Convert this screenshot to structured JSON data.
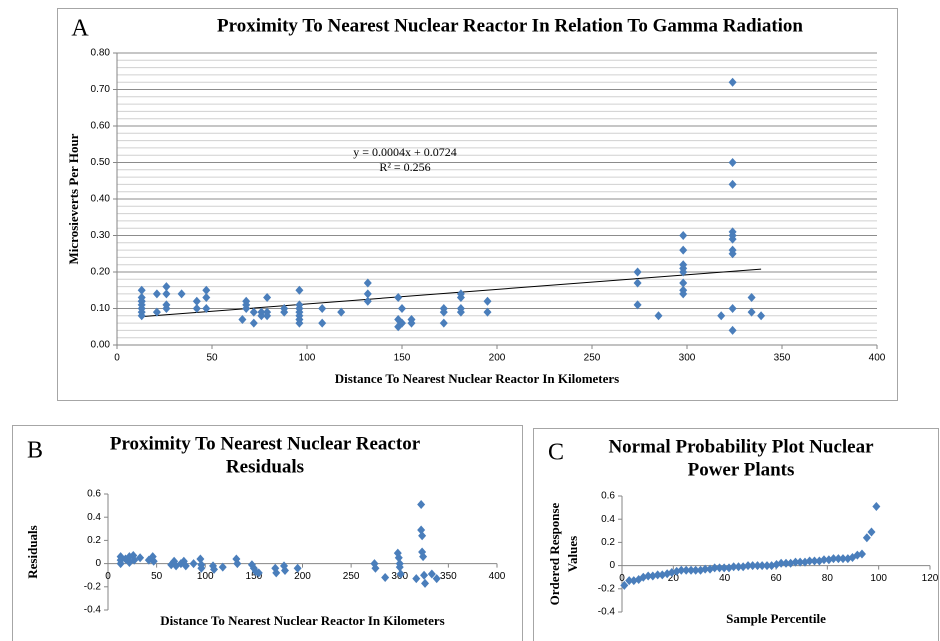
{
  "chart_data": [
    {
      "type": "scatter",
      "panel_label": "A",
      "title": "Proximity To Nearest Nuclear Reactor In Relation To Gamma Radiation",
      "xlabel": "Distance To Nearest Nuclear Reactor In Kilometers",
      "ylabel": [
        "Microsieverts Per Hour"
      ],
      "color": "#4a7ebb",
      "x": [
        13,
        13,
        13,
        13,
        13,
        13,
        13,
        13,
        21,
        21,
        26,
        26,
        26,
        26,
        34,
        42,
        42,
        47,
        47,
        47,
        66,
        68,
        68,
        68,
        72,
        72,
        76,
        76,
        79,
        79,
        79,
        88,
        88,
        96,
        96,
        96,
        96,
        96,
        96,
        96,
        108,
        108,
        118,
        132,
        132,
        132,
        148,
        148,
        148,
        150,
        150,
        155,
        155,
        172,
        172,
        172,
        181,
        181,
        181,
        181,
        195,
        195,
        274,
        274,
        274,
        285,
        298,
        298,
        298,
        298,
        298,
        298,
        298,
        298,
        318,
        324,
        324,
        324,
        324,
        324,
        324,
        324,
        324,
        324,
        324,
        334,
        334,
        339
      ],
      "values": [
        0.15,
        0.13,
        0.12,
        0.11,
        0.1,
        0.09,
        0.08,
        0.12,
        0.14,
        0.09,
        0.16,
        0.14,
        0.11,
        0.1,
        0.14,
        0.12,
        0.1,
        0.15,
        0.13,
        0.1,
        0.07,
        0.12,
        0.11,
        0.1,
        0.09,
        0.06,
        0.09,
        0.08,
        0.13,
        0.09,
        0.08,
        0.1,
        0.09,
        0.15,
        0.11,
        0.1,
        0.09,
        0.08,
        0.07,
        0.06,
        0.1,
        0.06,
        0.09,
        0.17,
        0.14,
        0.12,
        0.13,
        0.07,
        0.05,
        0.1,
        0.06,
        0.07,
        0.06,
        0.1,
        0.09,
        0.06,
        0.14,
        0.13,
        0.1,
        0.09,
        0.12,
        0.09,
        0.2,
        0.17,
        0.11,
        0.08,
        0.3,
        0.26,
        0.22,
        0.21,
        0.2,
        0.17,
        0.15,
        0.14,
        0.08,
        0.72,
        0.5,
        0.44,
        0.31,
        0.3,
        0.29,
        0.26,
        0.25,
        0.1,
        0.04,
        0.13,
        0.09,
        0.08
      ],
      "trendline": {
        "x": [
          13,
          339
        ],
        "values": [
          0.0776,
          0.208
        ]
      },
      "annotations": [
        "y = 0.0004x + 0.0724",
        "R² = 0.256"
      ],
      "xlim": [
        0,
        400
      ],
      "xticks": [
        0,
        50,
        100,
        150,
        200,
        250,
        300,
        350,
        400
      ],
      "ylim": [
        0,
        0.8
      ],
      "yticks": [
        {
          "value": 0,
          "label": "0.00"
        },
        {
          "value": 0.1,
          "label": "0.10"
        },
        {
          "value": 0.2,
          "label": "0.20"
        },
        {
          "value": 0.3,
          "label": "0.30"
        },
        {
          "value": 0.4,
          "label": "0.40"
        },
        {
          "value": 0.5,
          "label": "0.50"
        },
        {
          "value": 0.6,
          "label": "0.60"
        },
        {
          "value": 0.7,
          "label": "0.70"
        },
        {
          "value": 0.8,
          "label": "0.80"
        }
      ],
      "yminor": [
        0.02,
        0.04,
        0.06,
        0.08,
        0.12,
        0.14,
        0.16,
        0.18,
        0.22,
        0.24,
        0.26,
        0.28,
        0.32,
        0.34,
        0.36,
        0.38,
        0.42,
        0.44,
        0.46,
        0.48,
        0.52,
        0.54,
        0.56,
        0.58,
        0.62,
        0.64,
        0.66,
        0.68,
        0.72,
        0.74,
        0.76,
        0.78
      ],
      "grid": true
    },
    {
      "type": "scatter",
      "panel_label": "B",
      "title": [
        "Proximity To Nearest Nuclear Reactor",
        "Residuals"
      ],
      "xlabel": "Distance To Nearest Nuclear Reactor In Kilometers",
      "ylabel": [
        "Residuals"
      ],
      "color": "#4a7ebb",
      "x": [
        13,
        13,
        13,
        18,
        22,
        22,
        26,
        27,
        33,
        42,
        46,
        47,
        65,
        68,
        70,
        75,
        78,
        80,
        88,
        95,
        96,
        96,
        108,
        109,
        118,
        132,
        133,
        148,
        150,
        152,
        155,
        172,
        173,
        181,
        182,
        195,
        274,
        275,
        285,
        298,
        299,
        300,
        300,
        301,
        317,
        322,
        322,
        323,
        323,
        324,
        325,
        326,
        333,
        338
      ],
      "values": [
        0.06,
        0.03,
        0.0,
        0.04,
        0.06,
        0.01,
        0.07,
        0.03,
        0.05,
        0.03,
        0.06,
        0.02,
        -0.01,
        0.02,
        -0.02,
        0.0,
        0.02,
        -0.02,
        0.0,
        0.04,
        -0.01,
        -0.04,
        -0.02,
        -0.05,
        -0.03,
        0.04,
        0.0,
        -0.01,
        -0.04,
        -0.07,
        -0.08,
        -0.04,
        -0.08,
        -0.02,
        -0.06,
        -0.04,
        0.0,
        -0.04,
        -0.12,
        0.09,
        0.05,
        0.0,
        -0.03,
        -0.09,
        -0.13,
        0.51,
        0.29,
        0.24,
        0.1,
        0.06,
        -0.1,
        -0.17,
        -0.09,
        -0.13
      ],
      "xlim": [
        0,
        400
      ],
      "xticks": [
        0,
        50,
        100,
        150,
        200,
        250,
        300,
        350,
        400
      ],
      "ylim": [
        -0.4,
        0.6
      ],
      "yticks": [
        -0.4,
        -0.2,
        0,
        0.2,
        0.4,
        0.6
      ],
      "grid": false
    },
    {
      "type": "scatter",
      "panel_label": "C",
      "title": [
        "Normal Probability Plot Nuclear",
        "Power Plants"
      ],
      "xlabel": "Sample Percentile",
      "ylabel": [
        "Ordered Response",
        "Values"
      ],
      "color": "#4a7ebb",
      "x": [
        0.9,
        2.8,
        4.6,
        6.5,
        8.3,
        10.2,
        12.0,
        13.9,
        15.7,
        17.6,
        19.4,
        21.3,
        23.1,
        25.0,
        26.9,
        28.7,
        30.6,
        32.4,
        34.3,
        36.1,
        38.0,
        39.8,
        41.7,
        43.5,
        45.4,
        47.2,
        49.1,
        50.9,
        52.8,
        54.6,
        56.5,
        58.3,
        60.2,
        62.0,
        63.9,
        65.7,
        67.6,
        69.4,
        71.3,
        73.1,
        75.0,
        76.9,
        78.7,
        80.6,
        82.4,
        84.3,
        86.1,
        88.0,
        89.8,
        91.7,
        93.5,
        95.4,
        97.2,
        99.1
      ],
      "values": [
        -0.17,
        -0.13,
        -0.13,
        -0.12,
        -0.1,
        -0.09,
        -0.09,
        -0.08,
        -0.08,
        -0.07,
        -0.06,
        -0.05,
        -0.04,
        -0.04,
        -0.04,
        -0.04,
        -0.04,
        -0.03,
        -0.03,
        -0.02,
        -0.02,
        -0.02,
        -0.02,
        -0.01,
        -0.01,
        -0.01,
        0.0,
        0.0,
        0.0,
        0.0,
        0.0,
        0.0,
        0.01,
        0.02,
        0.02,
        0.02,
        0.03,
        0.03,
        0.03,
        0.04,
        0.04,
        0.04,
        0.05,
        0.05,
        0.06,
        0.06,
        0.06,
        0.06,
        0.07,
        0.09,
        0.1,
        0.24,
        0.29,
        0.51
      ],
      "xlim": [
        0,
        120
      ],
      "xticks": [
        0,
        20,
        40,
        60,
        80,
        100,
        120
      ],
      "ylim": [
        -0.4,
        0.6
      ],
      "yticks": [
        -0.4,
        -0.2,
        0,
        0.2,
        0.4,
        0.6
      ],
      "grid": false
    }
  ]
}
